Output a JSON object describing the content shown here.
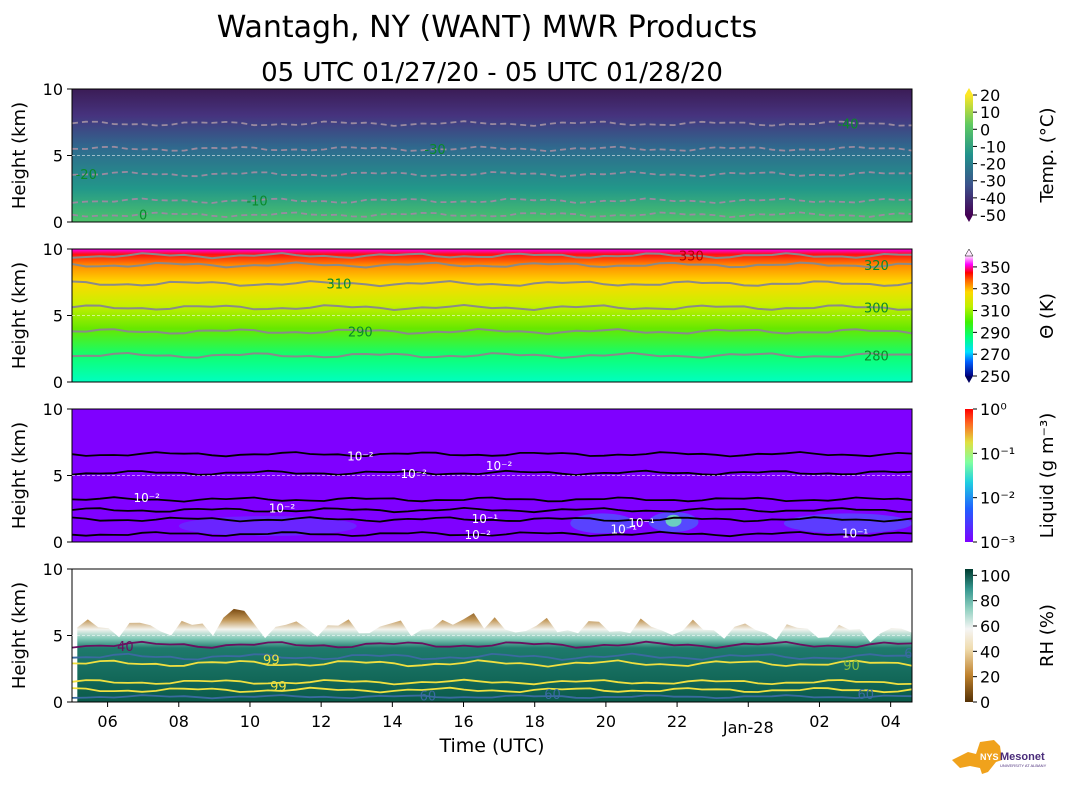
{
  "title": "Wantagh, NY (WANT) MWR Products",
  "subtitle": "05 UTC 01/27/20 - 05 UTC 01/28/20",
  "xlabel": "Time (UTC)",
  "x_ticks": [
    "06",
    "08",
    "10",
    "12",
    "14",
    "16",
    "18",
    "20",
    "22",
    "Jan-28",
    "02",
    "04"
  ],
  "logo": {
    "text": "NYS Mesonet",
    "subtext": "UNIVERSITY AT ALBANY",
    "colors": {
      "state": "#f0a21c",
      "text": "#4a2c7a"
    }
  },
  "chart_data": [
    {
      "type": "heatmap",
      "name": "temperature",
      "ylabel": "Height (km)",
      "ylim": [
        0,
        10
      ],
      "y_ticks": [
        "0",
        "5",
        "10"
      ],
      "x_range_utc_hours": [
        5,
        28.6
      ],
      "colorbar": {
        "label": "Temp. (°C)",
        "ticks": [
          "20",
          "10",
          "0",
          "-10",
          "-20",
          "-30",
          "-40",
          "-50"
        ],
        "range": [
          -50,
          20
        ],
        "colormap": "viridis",
        "extend": "both"
      },
      "contours": [
        {
          "value": 0,
          "label": "0",
          "height_km": 0.55
        },
        {
          "value": -10,
          "label": "-10",
          "height_km": 1.6
        },
        {
          "value": -20,
          "label": "-20",
          "height_km": 3.6
        },
        {
          "value": -30,
          "label": "-30",
          "height_km": 5.5
        },
        {
          "value": -40,
          "label": "-40",
          "height_km": 7.4
        }
      ]
    },
    {
      "type": "heatmap",
      "name": "potential_temperature",
      "ylabel": "Height (km)",
      "ylim": [
        0,
        10
      ],
      "y_ticks": [
        "0",
        "5",
        "10"
      ],
      "colorbar": {
        "label": "Θ (K)",
        "ticks": [
          "350",
          "330",
          "310",
          "290",
          "270",
          "250"
        ],
        "range": [
          250,
          360
        ],
        "colormap": "gist_ncar",
        "extend": "both"
      },
      "contours": [
        {
          "value": 280,
          "label": "280",
          "height_km": 2.0
        },
        {
          "value": 290,
          "label": "290",
          "height_km": 3.8
        },
        {
          "value": 300,
          "label": "300",
          "height_km": 5.6
        },
        {
          "value": 310,
          "label": "310",
          "height_km": 7.4
        },
        {
          "value": 320,
          "label": "320",
          "height_km": 8.8
        },
        {
          "value": 330,
          "label": "330",
          "height_km": 9.5
        }
      ]
    },
    {
      "type": "heatmap",
      "name": "liquid_water",
      "ylabel": "Height (km)",
      "ylim": [
        0,
        10
      ],
      "y_ticks": [
        "0",
        "5",
        "10"
      ],
      "colorbar": {
        "label": "Liquid (g m⁻³)",
        "ticks": [
          "10⁰",
          "10⁻¹",
          "10⁻²",
          "10⁻³"
        ],
        "range": [
          0.001,
          1
        ],
        "scale": "log",
        "colormap": "rainbow"
      },
      "contour_labels": [
        {
          "text": "10⁻²",
          "time": 13.1,
          "height_km": 6.5
        },
        {
          "text": "10⁻²",
          "time": 14.6,
          "height_km": 5.2
        },
        {
          "text": "10⁻²",
          "time": 17.0,
          "height_km": 5.8
        },
        {
          "text": "10⁻²",
          "time": 7.1,
          "height_km": 3.4
        },
        {
          "text": "10⁻²",
          "time": 10.9,
          "height_km": 2.6
        },
        {
          "text": "10⁻¹",
          "time": 16.6,
          "height_km": 1.8
        },
        {
          "text": "10⁻²",
          "time": 16.4,
          "height_km": 0.6
        },
        {
          "text": "10⁻¹",
          "time": 20.5,
          "height_km": 1.0
        },
        {
          "text": "10⁻¹",
          "time": 21.0,
          "height_km": 1.5
        },
        {
          "text": "10⁻¹",
          "time": 27.0,
          "height_km": 0.7
        }
      ]
    },
    {
      "type": "heatmap",
      "name": "relative_humidity",
      "ylabel": "Height (km)",
      "ylim": [
        0,
        10
      ],
      "y_ticks": [
        "0",
        "5",
        "10"
      ],
      "colorbar": {
        "label": "RH (%)",
        "ticks": [
          "100",
          "80",
          "60",
          "40",
          "20",
          "0"
        ],
        "range": [
          0,
          105
        ],
        "colormap": "BrBG"
      },
      "contour_labels": [
        {
          "text": "40",
          "time": 6.5,
          "height_km": 4.2
        },
        {
          "text": "99",
          "time": 10.6,
          "height_km": 3.2
        },
        {
          "text": "99",
          "time": 10.8,
          "height_km": 1.2
        },
        {
          "text": "60",
          "time": 15.0,
          "height_km": 0.5
        },
        {
          "text": "60",
          "time": 18.5,
          "height_km": 0.6
        },
        {
          "text": "60",
          "time": 27.3,
          "height_km": 0.6
        },
        {
          "text": "90",
          "time": 26.9,
          "height_km": 2.8
        },
        {
          "text": "6",
          "time": 28.5,
          "height_km": 3.7
        }
      ]
    }
  ]
}
